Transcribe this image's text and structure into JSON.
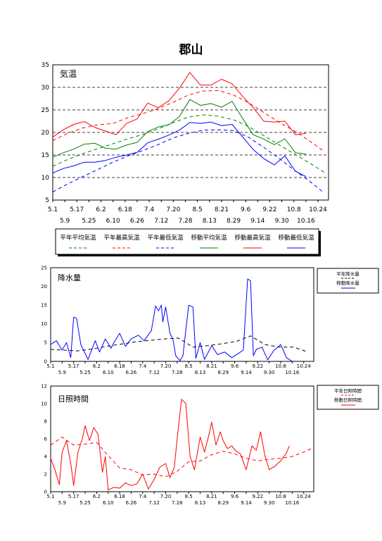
{
  "page": {
    "title": "郡山"
  },
  "colors": {
    "axis": "#000000",
    "temp_avg": "#008000",
    "temp_max": "#ff0000",
    "temp_min": "#0000ff",
    "precip": "#0000ff",
    "sunshine": "#ff0000",
    "shade": "#808080"
  },
  "chart_data": [
    {
      "type": "line",
      "title": "気温",
      "ylim": [
        5,
        35
      ],
      "yticks": [
        5,
        10,
        15,
        20,
        25,
        30,
        35
      ],
      "xlim": [
        "5.1",
        "10.31"
      ],
      "xticks_row1": [
        "5.1",
        "5.17",
        "6.2",
        "6.18",
        "7.4",
        "7.20",
        "8.5",
        "8.21",
        "9.6",
        "9.22",
        "10.8",
        "10.24"
      ],
      "xticks_row2": [
        "5.9",
        "5.25",
        "6.10",
        "6.26",
        "7.12",
        "7.28",
        "8.13",
        "8.29",
        "9.14",
        "9.30",
        "10.16"
      ],
      "grid": "horizontal dashed",
      "legend_position": "below",
      "series": [
        {
          "name": "平年平均気温",
          "color": "#008000",
          "style": "dashed",
          "x": [
            "5.1",
            "5.11",
            "5.21",
            "5.31",
            "6.10",
            "6.20",
            "6.30",
            "7.10",
            "7.20",
            "7.30",
            "8.9",
            "8.19",
            "8.29",
            "9.8",
            "9.18",
            "9.28",
            "10.8",
            "10.18",
            "10.28"
          ],
          "values": [
            12.5,
            14,
            15.3,
            16.4,
            17.5,
            18.6,
            19.6,
            20.8,
            22.2,
            23.4,
            23.9,
            23.6,
            22.8,
            21.3,
            19.3,
            17.3,
            15.3,
            13.3,
            11.2
          ]
        },
        {
          "name": "平年最高気温",
          "color": "#ff0000",
          "style": "dashed",
          "x": [
            "5.1",
            "5.11",
            "5.21",
            "5.31",
            "6.10",
            "6.20",
            "6.30",
            "7.10",
            "7.20",
            "7.30",
            "8.9",
            "8.19",
            "8.29",
            "9.8",
            "9.18",
            "9.28",
            "10.8",
            "10.18",
            "10.28"
          ],
          "values": [
            18.2,
            19.8,
            21,
            21.7,
            22,
            23.3,
            24.2,
            25.3,
            26.7,
            28.3,
            29.2,
            29.3,
            28.3,
            26.6,
            24.4,
            22.3,
            20.4,
            18.2,
            15.8
          ]
        },
        {
          "name": "平年最低気温",
          "color": "#0000ff",
          "style": "dashed",
          "x": [
            "5.1",
            "5.11",
            "5.21",
            "5.31",
            "6.10",
            "6.20",
            "6.30",
            "7.10",
            "7.20",
            "7.30",
            "8.9",
            "8.19",
            "8.29",
            "9.8",
            "9.18",
            "9.28",
            "10.8",
            "10.18",
            "10.28"
          ],
          "values": [
            6.8,
            8.6,
            10.2,
            11.8,
            13.4,
            14.8,
            16,
            17.3,
            18.8,
            19.8,
            20.5,
            20.6,
            20.4,
            18.9,
            16.7,
            14.3,
            11.7,
            9.3,
            6.6
          ]
        },
        {
          "name": "移動平均気温",
          "color": "#008000",
          "style": "solid",
          "x": [
            "5.1",
            "5.8",
            "5.15",
            "5.22",
            "5.29",
            "6.5",
            "6.12",
            "6.19",
            "6.26",
            "7.3",
            "7.10",
            "7.17",
            "7.24",
            "7.31",
            "8.7",
            "8.14",
            "8.21",
            "8.28",
            "9.4",
            "9.11",
            "9.18",
            "9.25",
            "10.2",
            "10.9",
            "10.16"
          ],
          "values": [
            14.5,
            15.5,
            16.3,
            17.4,
            17.6,
            16.5,
            16.3,
            17.2,
            17.8,
            20.2,
            21.2,
            21.7,
            23.5,
            27.3,
            26,
            26.4,
            25.6,
            26.9,
            23.1,
            19.5,
            18.5,
            17.3,
            18.6,
            15.5,
            15.2
          ]
        },
        {
          "name": "移動最高気温",
          "color": "#ff0000",
          "style": "solid",
          "x": [
            "5.1",
            "5.8",
            "5.15",
            "5.22",
            "5.29",
            "6.5",
            "6.12",
            "6.19",
            "6.26",
            "7.3",
            "7.10",
            "7.17",
            "7.24",
            "7.31",
            "8.7",
            "8.14",
            "8.21",
            "8.28",
            "9.4",
            "9.11",
            "9.18",
            "9.25",
            "10.2",
            "10.9",
            "10.16"
          ],
          "values": [
            19,
            20.6,
            21.8,
            22.4,
            21.1,
            20.3,
            19.5,
            22,
            23,
            26.5,
            25.5,
            27,
            29.8,
            33.3,
            30.5,
            30.5,
            31.8,
            30.8,
            28,
            25.5,
            22.5,
            22.3,
            22.5,
            19.5,
            19.8
          ]
        },
        {
          "name": "移動最低気温",
          "color": "#0000ff",
          "style": "solid",
          "x": [
            "5.1",
            "5.8",
            "5.15",
            "5.22",
            "5.29",
            "6.5",
            "6.12",
            "6.19",
            "6.26",
            "7.3",
            "7.10",
            "7.17",
            "7.24",
            "7.31",
            "8.7",
            "8.14",
            "8.21",
            "8.28",
            "9.4",
            "9.11",
            "9.18",
            "9.25",
            "10.2",
            "10.9",
            "10.16"
          ],
          "values": [
            11,
            12,
            12.6,
            13.4,
            13.4,
            13.8,
            14.5,
            15,
            15.6,
            17.7,
            18.5,
            19.4,
            20.5,
            22.2,
            22,
            22.3,
            21.5,
            21.8,
            19,
            16.2,
            14.2,
            12.8,
            14.8,
            11.4,
            10.2
          ]
        }
      ]
    },
    {
      "type": "line",
      "title": "降水量",
      "ylim": [
        0,
        25
      ],
      "yticks": [
        0,
        5,
        10,
        15,
        20,
        25
      ],
      "xlim": [
        "5.1",
        "10.31"
      ],
      "xticks_row1": [
        "5.1",
        "5.17",
        "6.2",
        "6.18",
        "7.4",
        "7.20",
        "8.5",
        "8.21",
        "9.6",
        "9.22",
        "10.8",
        "10.24"
      ],
      "xticks_row2": [
        "5.9",
        "5.25",
        "6.10",
        "6.26",
        "7.12",
        "7.28",
        "8.13",
        "8.29",
        "9.14",
        "9.30",
        "10.16"
      ],
      "legend_position": "right",
      "series": [
        {
          "name": "平年降水量",
          "color": "#000000",
          "style": "dashed",
          "x": [
            "5.1",
            "5.10",
            "5.20",
            "5.30",
            "6.9",
            "6.19",
            "6.29",
            "7.9",
            "7.19",
            "7.29",
            "8.8",
            "8.18",
            "8.28",
            "9.7",
            "9.17",
            "9.27",
            "10.7",
            "10.17",
            "10.27"
          ],
          "values": [
            3.2,
            3,
            2.8,
            3.3,
            4,
            4.6,
            5.2,
            5.6,
            6,
            6.2,
            3.8,
            4.2,
            4.7,
            5.3,
            6.8,
            4.5,
            3.8,
            3.8,
            2.5
          ]
        },
        {
          "name": "移動降水量",
          "color": "#0000ff",
          "style": "solid",
          "x": [
            "5.1",
            "5.5",
            "5.9",
            "5.12",
            "5.15",
            "5.17",
            "5.19",
            "5.22",
            "5.27",
            "6.1",
            "6.4",
            "6.8",
            "6.12",
            "6.14",
            "6.18",
            "6.22",
            "6.26",
            "7.1",
            "7.5",
            "7.10",
            "7.13",
            "7.15",
            "7.17",
            "7.18",
            "7.20",
            "7.23",
            "7.25",
            "7.27",
            "7.30",
            "8.1",
            "8.5",
            "8.8",
            "8.10",
            "8.13",
            "8.16",
            "8.21",
            "8.25",
            "8.30",
            "9.4",
            "9.8",
            "9.12",
            "9.15",
            "9.17",
            "9.19",
            "9.21",
            "9.25",
            "9.29",
            "10.3",
            "10.8",
            "10.12",
            "10.16"
          ],
          "values": [
            4.5,
            5.5,
            3,
            5,
            1,
            11.8,
            11.5,
            4.5,
            0.5,
            5.5,
            2.5,
            6,
            3.5,
            5,
            7.5,
            4,
            6,
            7,
            5.5,
            8.2,
            14.8,
            13.5,
            15,
            10.5,
            14.5,
            7.5,
            6,
            1.5,
            0.2,
            1.5,
            15,
            14.5,
            0.8,
            5,
            0.5,
            4.2,
            1.8,
            2.5,
            1,
            2,
            3,
            22,
            21.5,
            1.5,
            3.2,
            3.8,
            0.4,
            2.8,
            4.5,
            1,
            0
          ]
        }
      ]
    },
    {
      "type": "line",
      "title": "日照時間",
      "ylim": [
        0,
        12
      ],
      "yticks": [
        0,
        2,
        4,
        6,
        8,
        10,
        12
      ],
      "xlim": [
        "5.1",
        "10.31"
      ],
      "xticks_row1": [
        "5.1",
        "5.17",
        "6.2",
        "6.18",
        "7.4",
        "7.20",
        "8.5",
        "8.21",
        "9.6",
        "9.22",
        "10.8",
        "10.24"
      ],
      "xticks_row2": [
        "5.9",
        "5.25",
        "6.10",
        "6.26",
        "7.12",
        "7.28",
        "8.13",
        "8.29",
        "9.14",
        "9.30",
        "10.16"
      ],
      "legend_position": "right",
      "series": [
        {
          "name": "平年日照時間",
          "color": "#ff0000",
          "style": "dashed",
          "x": [
            "5.1",
            "5.9",
            "5.17",
            "5.25",
            "6.2",
            "6.10",
            "6.18",
            "6.26",
            "7.4",
            "7.12",
            "7.20",
            "7.28",
            "8.5",
            "8.13",
            "8.21",
            "8.29",
            "9.6",
            "9.14",
            "9.22",
            "9.30",
            "10.8",
            "10.16",
            "10.24",
            "10.31"
          ],
          "values": [
            5.3,
            6.2,
            5.3,
            5.4,
            5.6,
            4.1,
            2.7,
            2.5,
            1.9,
            2,
            1.7,
            2.3,
            3.4,
            3.5,
            4.2,
            4.6,
            4.3,
            3.8,
            3.5,
            3.7,
            3.8,
            4,
            4.5,
            5
          ]
        },
        {
          "name": "移動日照時間",
          "color": "#ff0000",
          "style": "solid",
          "x": [
            "5.1",
            "5.4",
            "5.7",
            "5.9",
            "5.12",
            "5.15",
            "5.17",
            "5.20",
            "5.23",
            "5.25",
            "5.28",
            "5.31",
            "6.3",
            "6.6",
            "6.8",
            "6.10",
            "6.14",
            "6.18",
            "6.22",
            "6.26",
            "6.30",
            "7.4",
            "7.8",
            "7.12",
            "7.16",
            "7.20",
            "7.23",
            "7.26",
            "7.28",
            "7.31",
            "8.3",
            "8.6",
            "8.9",
            "8.13",
            "8.16",
            "8.19",
            "8.21",
            "8.24",
            "8.27",
            "8.29",
            "9.1",
            "9.4",
            "9.7",
            "9.10",
            "9.14",
            "9.18",
            "9.21",
            "9.24",
            "9.27",
            "9.30",
            "10.4",
            "10.8",
            "10.12",
            "10.14"
          ],
          "values": [
            3.8,
            2.5,
            0.8,
            4.5,
            5.8,
            3.2,
            0.7,
            4.5,
            6,
            7.5,
            5.8,
            7.3,
            6.5,
            2.2,
            4,
            0.2,
            0.5,
            0.4,
            1,
            0.7,
            0.9,
            2,
            0.3,
            1.4,
            2.8,
            3.2,
            1.6,
            2.8,
            6,
            10.5,
            10,
            4,
            2.5,
            6.2,
            4.5,
            6.4,
            7.9,
            5.3,
            6.8,
            5.8,
            4.9,
            5.2,
            4.6,
            4.3,
            2.5,
            5.2,
            4.7,
            6.8,
            4.1,
            2.5,
            2.9,
            3.5,
            4.4,
            5.2
          ]
        }
      ]
    }
  ],
  "legends": {
    "temp": [
      "平年平均気温",
      "平年最高気温",
      "平年最低気温",
      "移動平均気温",
      "移動最高気温",
      "移動最低気温"
    ],
    "precip": [
      "平年降水量",
      "移動降水量"
    ],
    "sunshine": [
      "平年日照時間",
      "移動日照時間"
    ]
  }
}
